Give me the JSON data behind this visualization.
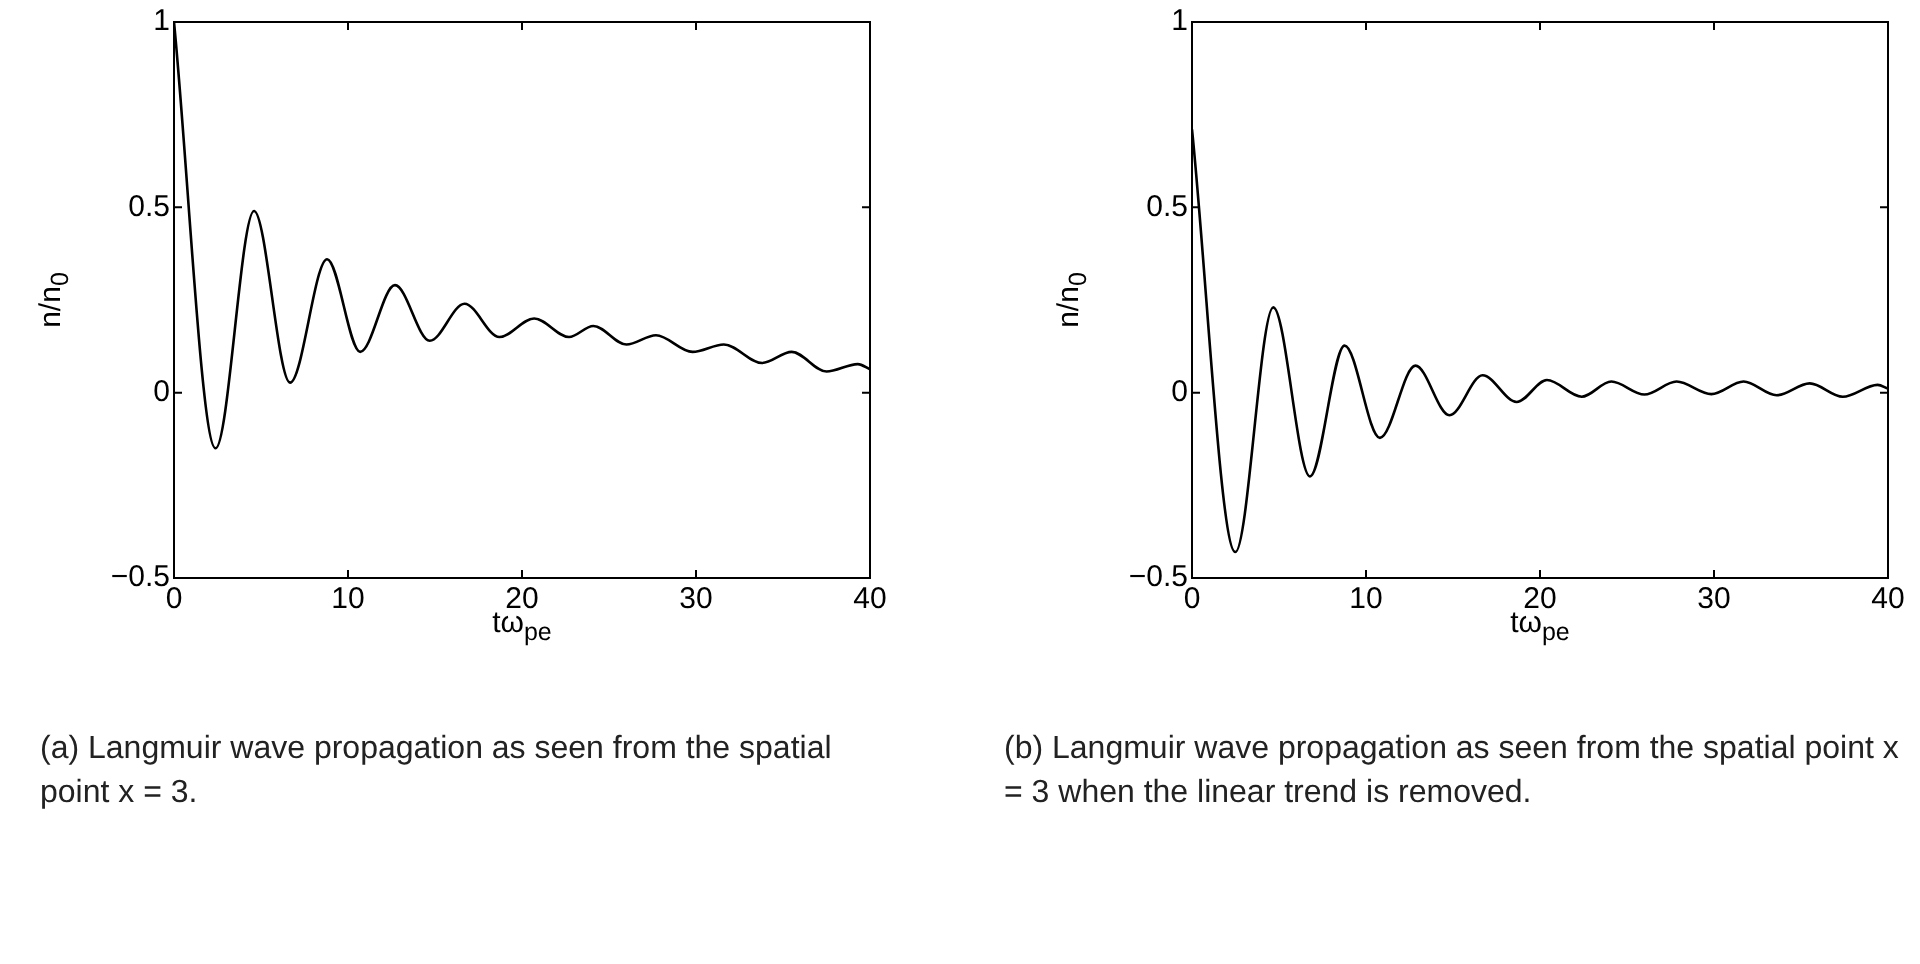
{
  "chart_data": [
    {
      "type": "line",
      "xlabel": "tω$_{pe}$",
      "ylabel": "n/n$_{0}$",
      "xlim": [
        0,
        40
      ],
      "xticks": [
        0,
        10,
        20,
        30,
        40
      ],
      "ylim": [
        -0.5,
        1
      ],
      "yticks": [
        {
          "value": -0.5,
          "label": "−0.5"
        },
        0,
        0.5,
        1
      ],
      "grid": false,
      "series": [
        {
          "color": "#000000",
          "x": [
            0,
            2.39,
            4.6,
            6.67,
            8.8,
            10.7,
            12.7,
            14.7,
            16.7,
            18.7,
            20.7,
            22.7,
            24.1,
            26.0,
            27.7,
            29.8,
            31.6,
            33.8,
            35.5,
            37.5,
            39.3,
            40
          ],
          "values": [
            1,
            -0.15,
            0.49,
            0.027,
            0.36,
            0.11,
            0.29,
            0.14,
            0.24,
            0.15,
            0.2,
            0.15,
            0.18,
            0.13,
            0.155,
            0.11,
            0.13,
            0.08,
            0.11,
            0.057,
            0.077,
            0.063
          ]
        }
      ],
      "annotations": [
        "(a) Langmuir wave propagation as seen from the spatial point x = 3."
      ]
    },
    {
      "type": "line",
      "xlabel": "tω$_{pe}$",
      "ylabel": "n/n$_{0}$",
      "xlim": [
        0,
        40
      ],
      "xticks": [
        0,
        10,
        20,
        30,
        40
      ],
      "ylim": [
        -0.5,
        1
      ],
      "yticks": [
        {
          "value": -0.5,
          "label": "−0.5"
        },
        0,
        0.5,
        1
      ],
      "grid": false,
      "series": [
        {
          "color": "#000000",
          "x": [
            0,
            2.49,
            4.67,
            6.78,
            8.77,
            10.8,
            12.84,
            14.8,
            16.7,
            18.66,
            20.4,
            22.4,
            24.1,
            26.0,
            27.85,
            29.85,
            31.7,
            33.6,
            35.5,
            37.4,
            39.4,
            40
          ],
          "values": [
            0.71,
            -0.43,
            0.23,
            -0.226,
            0.127,
            -0.122,
            0.073,
            -0.061,
            0.047,
            -0.025,
            0.034,
            -0.011,
            0.03,
            -0.005,
            0.03,
            -0.004,
            0.03,
            -0.007,
            0.025,
            -0.011,
            0.021,
            0.011
          ]
        }
      ],
      "annotations": [
        "(b) Langmuir wave propagation as seen from the spatial point x = 3 when the linear trend is removed."
      ]
    }
  ]
}
